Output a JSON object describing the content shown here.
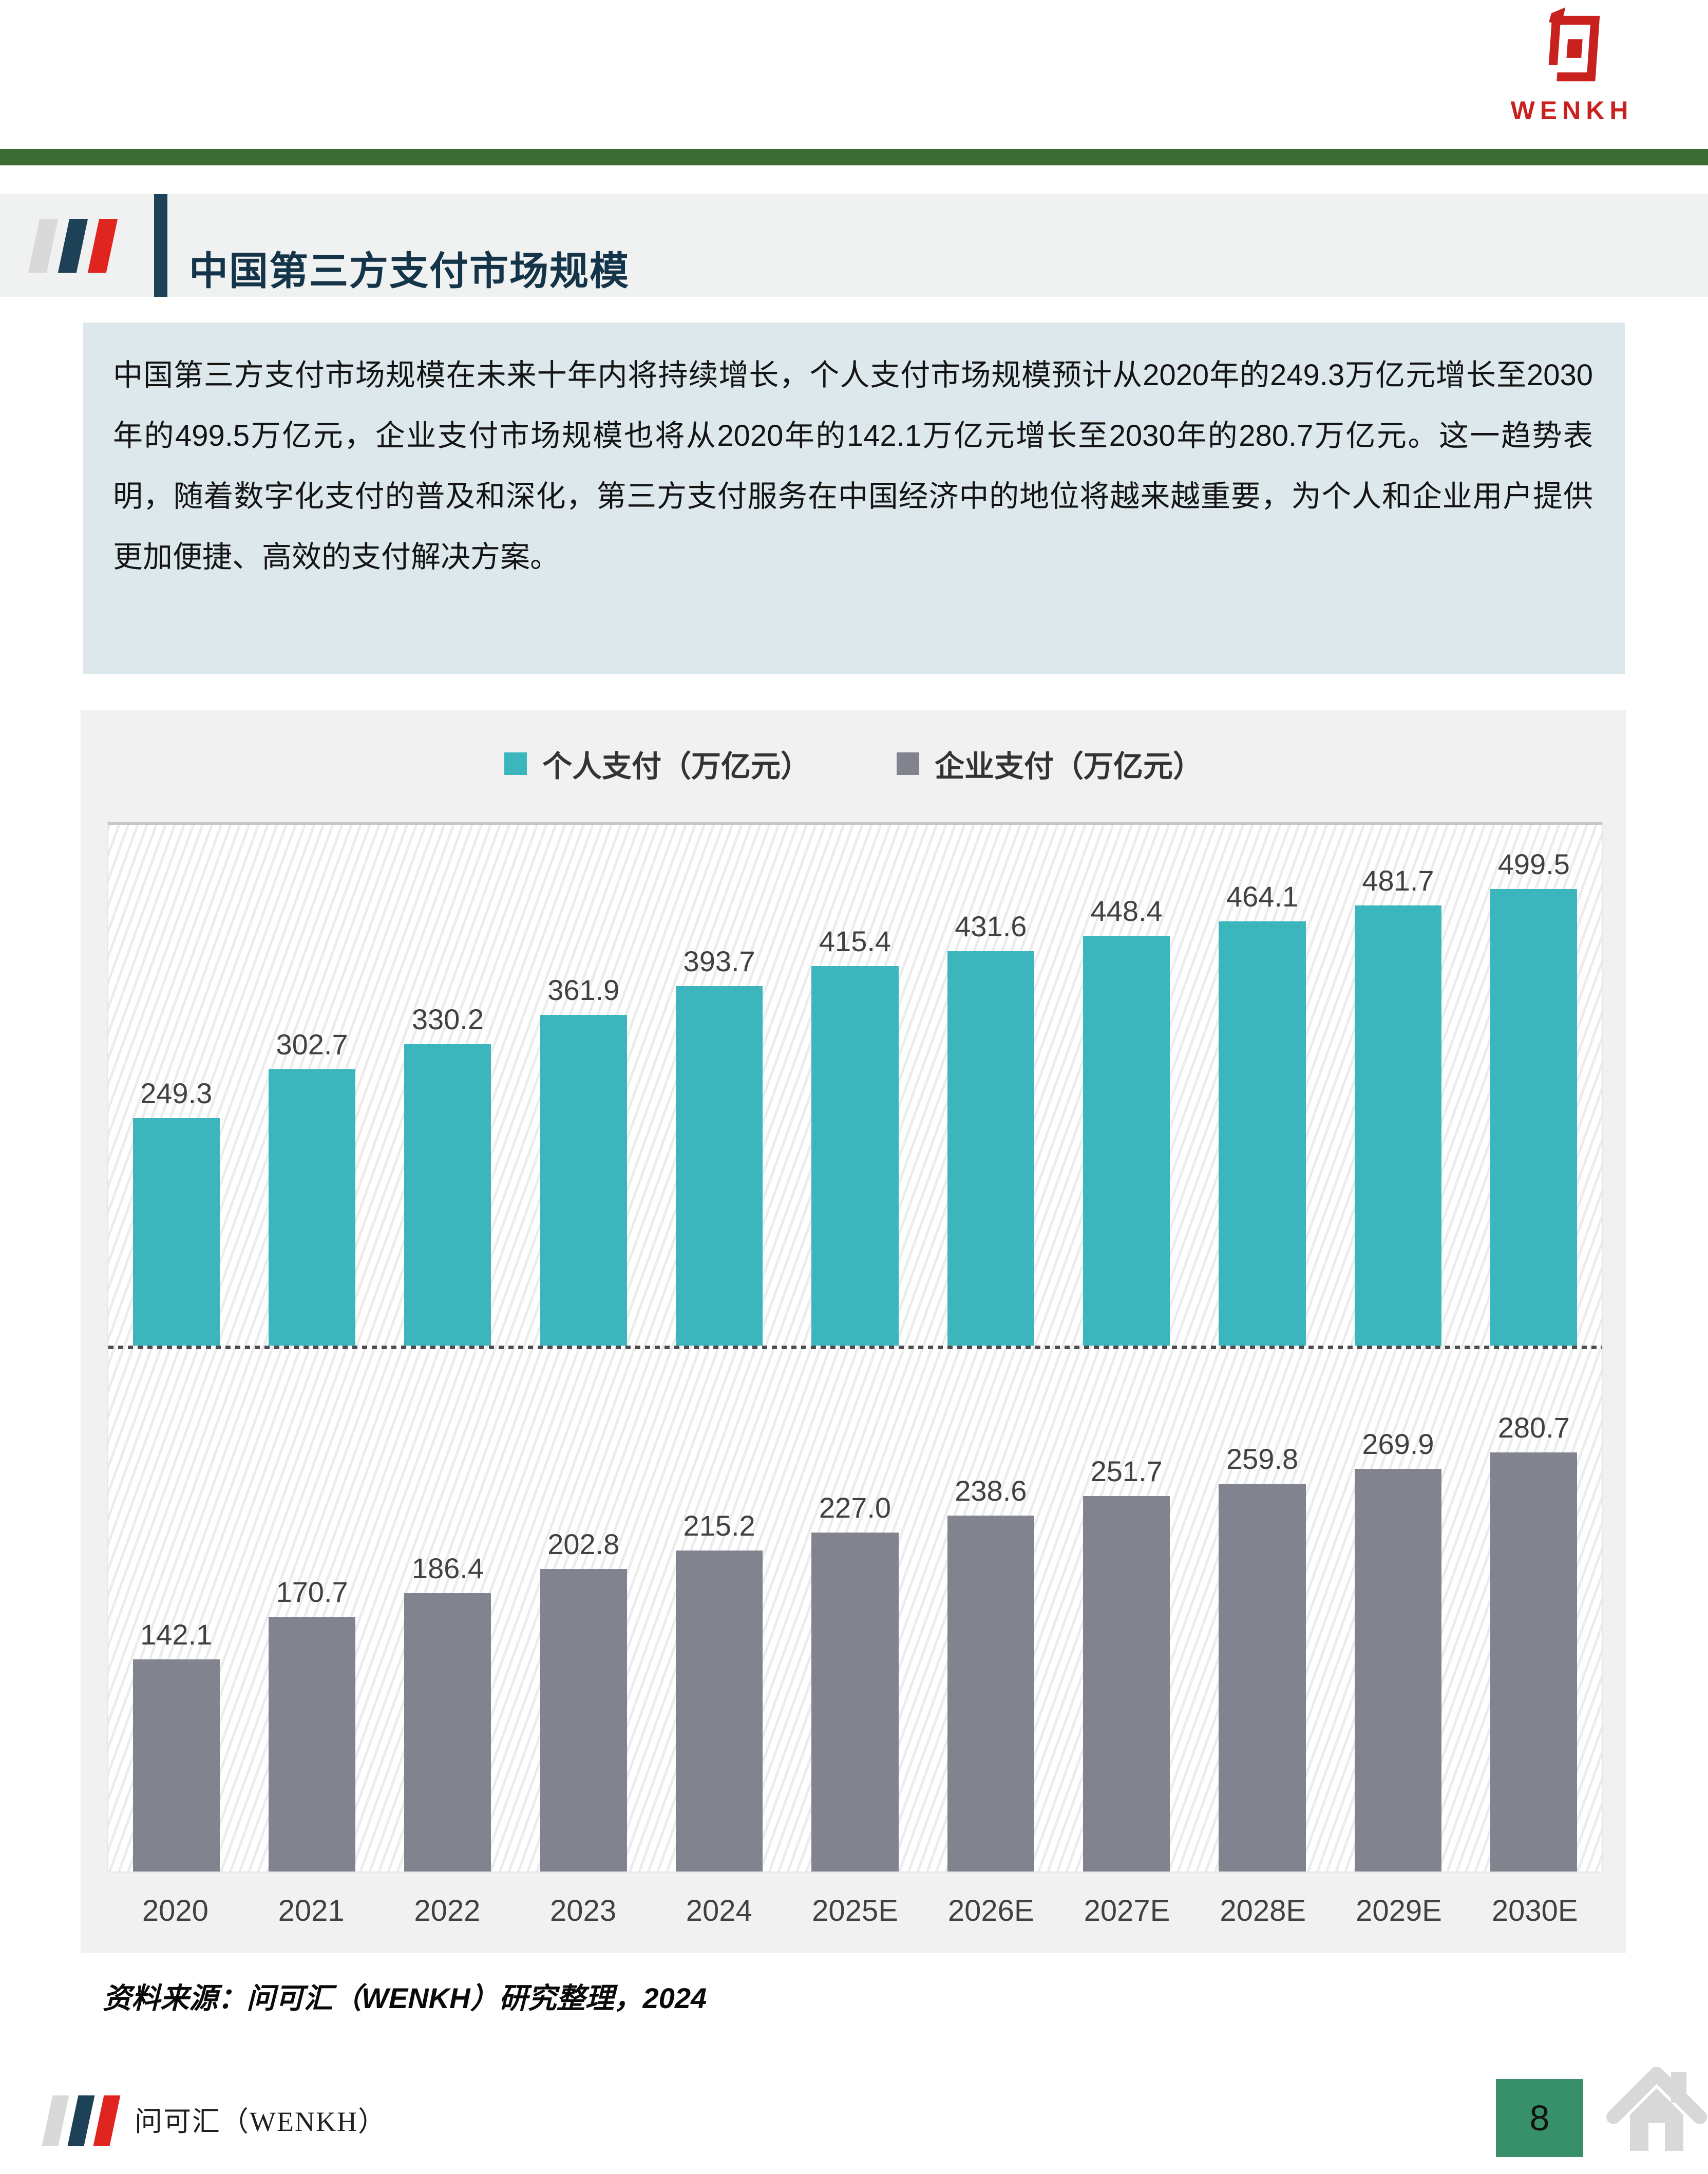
{
  "logo": {
    "text": "WENKH",
    "color": "#c9211e"
  },
  "page_header": {
    "title": "中国第三方支付市场规模"
  },
  "summary": {
    "text": "中国第三方支付市场规模在未来十年内将持续增长，个人支付市场规模预计从2020年的249.3万亿元增长至2030年的499.5万亿元，企业支付市场规模也将从2020年的142.1万亿元增长至2030年的280.7万亿元。这一趋势表明，随着数字化支付的普及和深化，第三方支付服务在中国经济中的地位将越来越重要，为个人和企业用户提供更加便捷、高效的支付解决方案。"
  },
  "chart_data": {
    "type": "bar",
    "categories": [
      "2020",
      "2021",
      "2022",
      "2023",
      "2024",
      "2025E",
      "2026E",
      "2027E",
      "2028E",
      "2029E",
      "2030E"
    ],
    "series": [
      {
        "name": "个人支付（万亿元）",
        "color": "#3cb6bd",
        "values": [
          249.3,
          302.7,
          330.2,
          361.9,
          393.7,
          415.4,
          431.6,
          448.4,
          464.1,
          481.7,
          499.5
        ],
        "ylim": [
          0,
          570
        ]
      },
      {
        "name": "企业支付（万亿元）",
        "color": "#81848f",
        "values": [
          142.1,
          170.7,
          186.4,
          202.8,
          215.2,
          227.0,
          238.6,
          251.7,
          259.8,
          269.9,
          280.7
        ],
        "ylim": [
          0,
          350
        ]
      }
    ],
    "title": "",
    "xlabel": "",
    "ylabel": "",
    "grid": false,
    "legend_position": "top-center",
    "value_labels": true,
    "layout": "two stacked panels sharing x axis; personal series above dotted divider baseline, enterprise series on bottom baseline; hatched plot background"
  },
  "source_note": "资料来源：问可汇（WENKH）研究整理，2024",
  "footer": {
    "brand": "问可汇（WENKH）",
    "page_number": "8"
  },
  "colors": {
    "accent_green_bar": "#3c6b34",
    "badge_green": "#38906a",
    "navy": "#1d4156",
    "flag_red": "#e02420",
    "card_bg": "#f1f1f1",
    "summary_bg": "#dce8ec"
  }
}
